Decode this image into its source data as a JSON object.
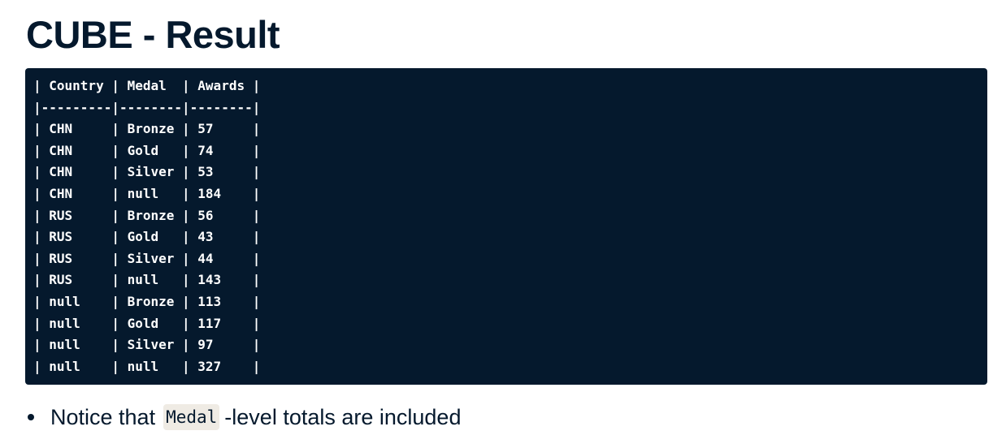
{
  "slide": {
    "title": "CUBE - Result"
  },
  "code_block": {
    "lines": [
      "| Country | Medal  | Awards |",
      "|---------|--------|--------|",
      "| CHN     | Bronze | 57     |",
      "| CHN     | Gold   | 74     |",
      "| CHN     | Silver | 53     |",
      "| CHN     | null   | 184    |",
      "| RUS     | Bronze | 56     |",
      "| RUS     | Gold   | 43     |",
      "| RUS     | Silver | 44     |",
      "| RUS     | null   | 143    |",
      "| null    | Bronze | 113    |",
      "| null    | Gold   | 117    |",
      "| null    | Silver | 97     |",
      "| null    | null   | 327    |"
    ]
  },
  "bullets": [
    {
      "prefix": "Notice that",
      "code": "Medal",
      "suffix": "-level totals are included"
    }
  ],
  "colors": {
    "text": "#05192d",
    "code_background": "#05192d",
    "code_text": "#ffffff",
    "inline_code_background": "#efebe4"
  }
}
